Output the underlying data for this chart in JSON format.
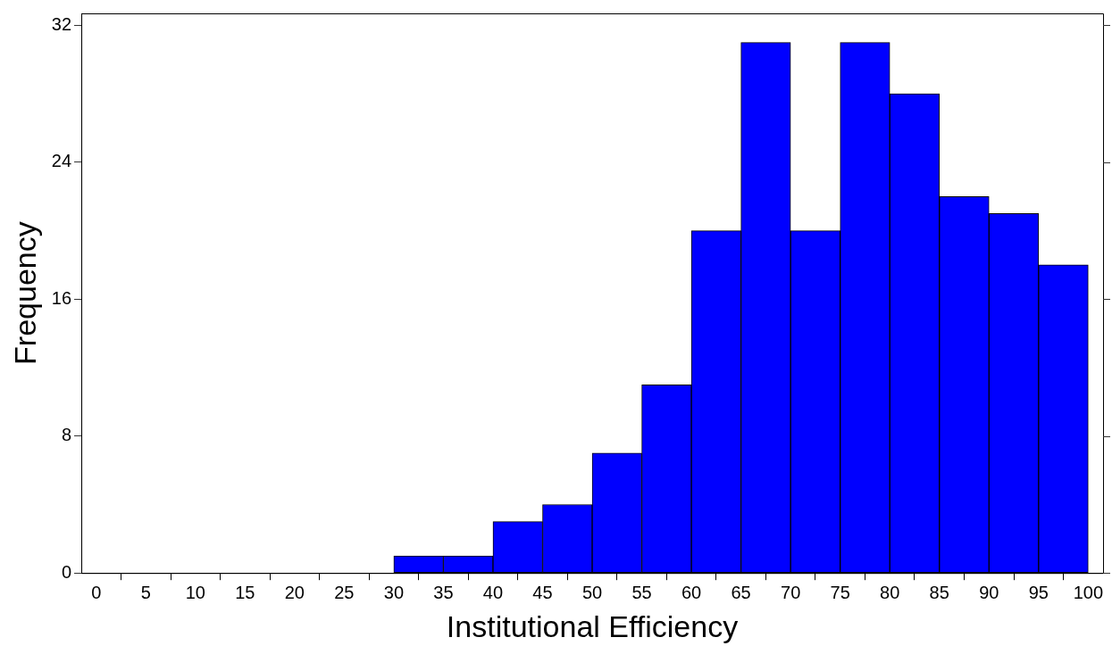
{
  "chart_data": {
    "type": "histogram",
    "xlabel": "Institutional Efficiency",
    "ylabel": "Frequency",
    "bins": [
      30,
      35,
      40,
      45,
      50,
      55,
      60,
      65,
      70,
      75,
      80,
      85,
      90,
      95,
      100
    ],
    "values": [
      1,
      1,
      3,
      4,
      7,
      11,
      20,
      31,
      20,
      31,
      28,
      22,
      21,
      18
    ],
    "color": "#0000ff",
    "xlim": [
      -1.5,
      101.5
    ],
    "xticks": [
      0,
      5,
      10,
      15,
      20,
      25,
      30,
      35,
      40,
      45,
      50,
      55,
      60,
      65,
      70,
      75,
      80,
      85,
      90,
      95,
      100
    ],
    "ylim": [
      0,
      32.7
    ],
    "yticks": [
      0,
      8,
      16,
      24,
      32
    ],
    "grid": false,
    "legend": false
  }
}
